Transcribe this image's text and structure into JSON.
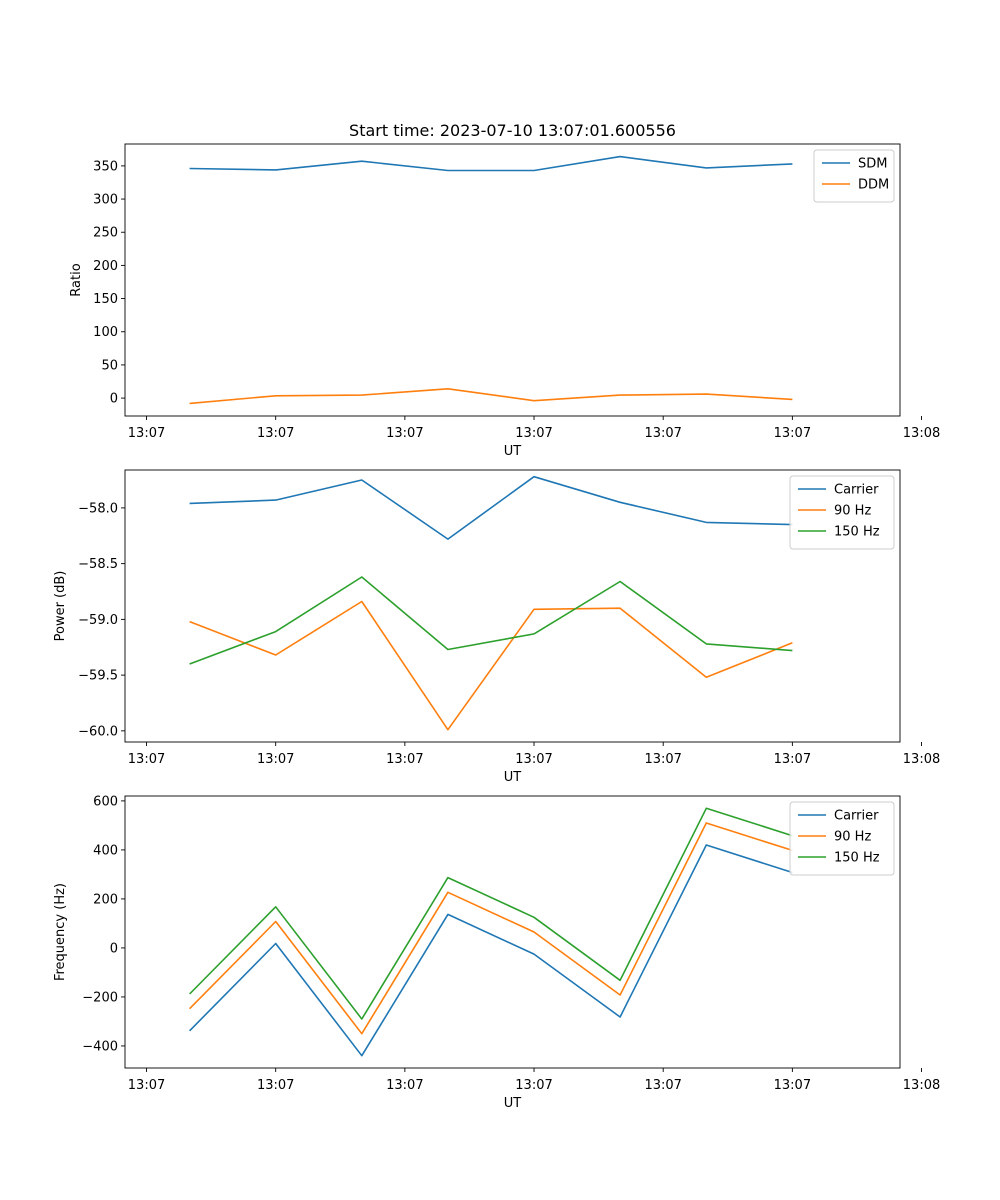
{
  "figure": {
    "title": "Start time: 2023-07-10 13:07:01.600556"
  },
  "chart_data": [
    {
      "type": "line",
      "title": "Start time: 2023-07-10 13:07:01.600556",
      "xlabel": "UT",
      "ylabel": "Ratio",
      "x": [
        1,
        2,
        3,
        4,
        5,
        6,
        7,
        8
      ],
      "xlim": [
        0.25,
        9.25
      ],
      "ylim": [
        -27,
        383
      ],
      "yticks": [
        0,
        50,
        100,
        150,
        200,
        250,
        300,
        350
      ],
      "xticks": [
        0.5,
        2,
        3.5,
        5,
        6.5,
        8,
        9.5
      ],
      "xticklabels": [
        "13:07",
        "13:07",
        "13:07",
        "13:07",
        "13:07",
        "13:07",
        "13:08"
      ],
      "legend_position": "top-right",
      "series": [
        {
          "name": "SDM",
          "color": "#1f77b4",
          "values": [
            346,
            344,
            357,
            343,
            343,
            364,
            347,
            353
          ]
        },
        {
          "name": "DDM",
          "color": "#ff7f0e",
          "values": [
            -8,
            3.5,
            4.5,
            14,
            -4,
            4.5,
            6,
            -2
          ]
        }
      ]
    },
    {
      "type": "line",
      "title": "",
      "xlabel": "UT",
      "ylabel": "Power (dB)",
      "x": [
        1,
        2,
        3,
        4,
        5,
        6,
        7,
        8
      ],
      "xlim": [
        0.25,
        9.25
      ],
      "ylim": [
        -60.1,
        -57.66
      ],
      "yticks": [
        -58.0,
        -58.5,
        -59.0,
        -59.5,
        -60.0
      ],
      "yticklabels": [
        "−58.0",
        "−58.5",
        "−59.0",
        "−59.5",
        "−60.0"
      ],
      "xticks": [
        0.5,
        2,
        3.5,
        5,
        6.5,
        8,
        9.5
      ],
      "xticklabels": [
        "13:07",
        "13:07",
        "13:07",
        "13:07",
        "13:07",
        "13:07",
        "13:08"
      ],
      "legend_position": "top-right",
      "series": [
        {
          "name": "Carrier",
          "color": "#1f77b4",
          "values": [
            -57.96,
            -57.93,
            -57.75,
            -58.28,
            -57.72,
            -57.95,
            -58.13,
            -58.15
          ]
        },
        {
          "name": "90 Hz",
          "color": "#ff7f0e",
          "values": [
            -59.02,
            -59.32,
            -58.84,
            -59.99,
            -58.91,
            -58.9,
            -59.52,
            -59.21
          ]
        },
        {
          "name": "150 Hz",
          "color": "#2ca02c",
          "values": [
            -59.4,
            -59.11,
            -58.62,
            -59.27,
            -59.13,
            -58.66,
            -59.22,
            -59.28
          ]
        }
      ]
    },
    {
      "type": "line",
      "title": "",
      "xlabel": "UT",
      "ylabel": "Frequency (Hz)",
      "x": [
        1,
        2,
        3,
        4,
        5,
        6,
        7,
        8
      ],
      "xlim": [
        0.25,
        9.25
      ],
      "ylim": [
        -490,
        620
      ],
      "yticks": [
        -400,
        -200,
        0,
        200,
        400,
        600
      ],
      "yticklabels": [
        "−400",
        "−200",
        "0",
        "200",
        "400",
        "600"
      ],
      "xticks": [
        0.5,
        2,
        3.5,
        5,
        6.5,
        8,
        9.5
      ],
      "xticklabels": [
        "13:07",
        "13:07",
        "13:07",
        "13:07",
        "13:07",
        "13:07",
        "13:08"
      ],
      "legend_position": "top-right",
      "series": [
        {
          "name": "Carrier",
          "color": "#1f77b4",
          "values": [
            -338,
            18,
            -440,
            137,
            -25,
            -282,
            420,
            308
          ]
        },
        {
          "name": "90 Hz",
          "color": "#ff7f0e",
          "values": [
            -248,
            108,
            -350,
            227,
            65,
            -192,
            510,
            398
          ]
        },
        {
          "name": "150 Hz",
          "color": "#2ca02c",
          "values": [
            -188,
            168,
            -290,
            287,
            125,
            -132,
            570,
            458
          ]
        }
      ]
    }
  ]
}
